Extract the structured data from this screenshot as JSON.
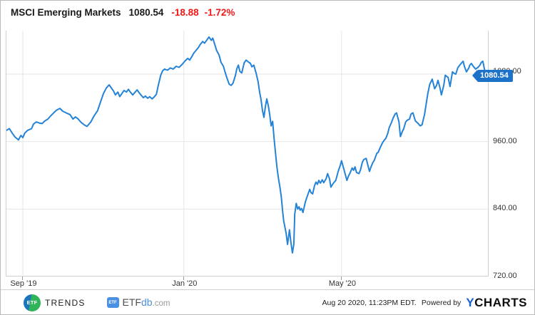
{
  "title": {
    "name": "MSCI Emerging Markets",
    "value": "1080.54",
    "change": "-18.88",
    "change_pct": "-1.72%",
    "change_color": "#f01818"
  },
  "chart_data": {
    "type": "line",
    "series_name": "MSCI Emerging Markets",
    "line_color": "#2583d7",
    "grid_color": "#e6e6e6",
    "x_ticks": [
      {
        "label": "Sep '19",
        "f": 0.034
      },
      {
        "label": "Jan '20",
        "f": 0.368
      },
      {
        "label": "May '20",
        "f": 0.695
      }
    ],
    "y_ticks": [
      {
        "label": "1080.00",
        "v": 1080
      },
      {
        "label": "960.00",
        "v": 960
      },
      {
        "label": "840.00",
        "v": 840
      },
      {
        "label": "720.00",
        "v": 720
      }
    ],
    "ylim": [
      720,
      1159
    ],
    "last_value": 1080.54,
    "last_value_label": "1080.54",
    "points": [
      [
        0.0,
        980
      ],
      [
        0.006,
        983
      ],
      [
        0.012,
        975
      ],
      [
        0.018,
        968
      ],
      [
        0.025,
        963
      ],
      [
        0.03,
        971
      ],
      [
        0.034,
        967
      ],
      [
        0.038,
        975
      ],
      [
        0.044,
        980
      ],
      [
        0.052,
        983
      ],
      [
        0.056,
        991
      ],
      [
        0.062,
        995
      ],
      [
        0.068,
        993
      ],
      [
        0.074,
        992
      ],
      [
        0.08,
        997
      ],
      [
        0.086,
        1000
      ],
      [
        0.092,
        1006
      ],
      [
        0.098,
        1011
      ],
      [
        0.104,
        1016
      ],
      [
        0.111,
        1019
      ],
      [
        0.117,
        1014
      ],
      [
        0.124,
        1011
      ],
      [
        0.132,
        1008
      ],
      [
        0.138,
        1000
      ],
      [
        0.143,
        1004
      ],
      [
        0.149,
        1000
      ],
      [
        0.155,
        994
      ],
      [
        0.161,
        990
      ],
      [
        0.167,
        987
      ],
      [
        0.175,
        995
      ],
      [
        0.182,
        1006
      ],
      [
        0.189,
        1015
      ],
      [
        0.195,
        1030
      ],
      [
        0.201,
        1045
      ],
      [
        0.207,
        1055
      ],
      [
        0.213,
        1061
      ],
      [
        0.217,
        1056
      ],
      [
        0.222,
        1050
      ],
      [
        0.226,
        1043
      ],
      [
        0.231,
        1048
      ],
      [
        0.235,
        1040
      ],
      [
        0.24,
        1046
      ],
      [
        0.244,
        1051
      ],
      [
        0.249,
        1048
      ],
      [
        0.253,
        1053
      ],
      [
        0.257,
        1048
      ],
      [
        0.262,
        1043
      ],
      [
        0.266,
        1047
      ],
      [
        0.271,
        1052
      ],
      [
        0.275,
        1047
      ],
      [
        0.28,
        1042
      ],
      [
        0.284,
        1038
      ],
      [
        0.288,
        1041
      ],
      [
        0.293,
        1037
      ],
      [
        0.297,
        1040
      ],
      [
        0.302,
        1036
      ],
      [
        0.306,
        1039
      ],
      [
        0.311,
        1044
      ],
      [
        0.315,
        1060
      ],
      [
        0.32,
        1078
      ],
      [
        0.324,
        1086
      ],
      [
        0.328,
        1089
      ],
      [
        0.334,
        1087
      ],
      [
        0.34,
        1091
      ],
      [
        0.346,
        1089
      ],
      [
        0.352,
        1094
      ],
      [
        0.358,
        1092
      ],
      [
        0.364,
        1097
      ],
      [
        0.37,
        1103
      ],
      [
        0.376,
        1108
      ],
      [
        0.38,
        1105
      ],
      [
        0.385,
        1112
      ],
      [
        0.389,
        1118
      ],
      [
        0.393,
        1122
      ],
      [
        0.398,
        1127
      ],
      [
        0.402,
        1133
      ],
      [
        0.407,
        1138
      ],
      [
        0.411,
        1135
      ],
      [
        0.416,
        1141
      ],
      [
        0.42,
        1146
      ],
      [
        0.425,
        1140
      ],
      [
        0.428,
        1144
      ],
      [
        0.432,
        1133
      ],
      [
        0.436,
        1122
      ],
      [
        0.441,
        1114
      ],
      [
        0.445,
        1101
      ],
      [
        0.45,
        1094
      ],
      [
        0.453,
        1085
      ],
      [
        0.457,
        1074
      ],
      [
        0.462,
        1062
      ],
      [
        0.466,
        1060
      ],
      [
        0.47,
        1064
      ],
      [
        0.475,
        1078
      ],
      [
        0.478,
        1090
      ],
      [
        0.481,
        1096
      ],
      [
        0.484,
        1085
      ],
      [
        0.488,
        1082
      ],
      [
        0.493,
        1100
      ],
      [
        0.497,
        1105
      ],
      [
        0.501,
        1102
      ],
      [
        0.506,
        1099
      ],
      [
        0.509,
        1093
      ],
      [
        0.513,
        1096
      ],
      [
        0.518,
        1081
      ],
      [
        0.522,
        1066
      ],
      [
        0.525,
        1048
      ],
      [
        0.528,
        1035
      ],
      [
        0.531,
        1015
      ],
      [
        0.534,
        1003
      ],
      [
        0.537,
        1022
      ],
      [
        0.54,
        1036
      ],
      [
        0.543,
        1024
      ],
      [
        0.546,
        1008
      ],
      [
        0.549,
        988
      ],
      [
        0.552,
        996
      ],
      [
        0.555,
        966
      ],
      [
        0.558,
        940
      ],
      [
        0.561,
        915
      ],
      [
        0.564,
        895
      ],
      [
        0.567,
        880
      ],
      [
        0.57,
        862
      ],
      [
        0.573,
        835
      ],
      [
        0.575,
        819
      ],
      [
        0.58,
        797
      ],
      [
        0.583,
        777
      ],
      [
        0.587,
        803
      ],
      [
        0.59,
        781
      ],
      [
        0.593,
        762
      ],
      [
        0.596,
        777
      ],
      [
        0.598,
        831
      ],
      [
        0.601,
        850
      ],
      [
        0.604,
        840
      ],
      [
        0.607,
        844
      ],
      [
        0.609,
        838
      ],
      [
        0.612,
        841
      ],
      [
        0.615,
        834
      ],
      [
        0.62,
        853
      ],
      [
        0.624,
        863
      ],
      [
        0.629,
        875
      ],
      [
        0.632,
        869
      ],
      [
        0.635,
        867
      ],
      [
        0.639,
        882
      ],
      [
        0.642,
        888
      ],
      [
        0.645,
        884
      ],
      [
        0.648,
        891
      ],
      [
        0.651,
        886
      ],
      [
        0.655,
        892
      ],
      [
        0.658,
        887
      ],
      [
        0.663,
        894
      ],
      [
        0.666,
        903
      ],
      [
        0.67,
        894
      ],
      [
        0.673,
        879
      ],
      [
        0.678,
        886
      ],
      [
        0.68,
        888
      ],
      [
        0.683,
        891
      ],
      [
        0.688,
        907
      ],
      [
        0.692,
        917
      ],
      [
        0.695,
        926
      ],
      [
        0.701,
        907
      ],
      [
        0.706,
        891
      ],
      [
        0.709,
        898
      ],
      [
        0.713,
        905
      ],
      [
        0.717,
        913
      ],
      [
        0.72,
        909
      ],
      [
        0.723,
        915
      ],
      [
        0.726,
        905
      ],
      [
        0.731,
        903
      ],
      [
        0.734,
        909
      ],
      [
        0.738,
        923
      ],
      [
        0.741,
        928
      ],
      [
        0.746,
        930
      ],
      [
        0.749,
        920
      ],
      [
        0.753,
        907
      ],
      [
        0.756,
        915
      ],
      [
        0.76,
        923
      ],
      [
        0.763,
        927
      ],
      [
        0.768,
        939
      ],
      [
        0.771,
        941
      ],
      [
        0.775,
        949
      ],
      [
        0.78,
        958
      ],
      [
        0.784,
        963
      ],
      [
        0.787,
        966
      ],
      [
        0.791,
        975
      ],
      [
        0.794,
        985
      ],
      [
        0.799,
        995
      ],
      [
        0.802,
        1002
      ],
      [
        0.806,
        1009
      ],
      [
        0.809,
        1011
      ],
      [
        0.814,
        995
      ],
      [
        0.817,
        969
      ],
      [
        0.821,
        978
      ],
      [
        0.824,
        983
      ],
      [
        0.828,
        995
      ],
      [
        0.831,
        998
      ],
      [
        0.836,
        1000
      ],
      [
        0.839,
        1009
      ],
      [
        0.843,
        1011
      ],
      [
        0.848,
        997
      ],
      [
        0.854,
        992
      ],
      [
        0.858,
        988
      ],
      [
        0.862,
        990
      ],
      [
        0.867,
        1008
      ],
      [
        0.87,
        1024
      ],
      [
        0.874,
        1046
      ],
      [
        0.878,
        1062
      ],
      [
        0.883,
        1071
      ],
      [
        0.888,
        1054
      ],
      [
        0.892,
        1060
      ],
      [
        0.895,
        1069
      ],
      [
        0.899,
        1056
      ],
      [
        0.902,
        1043
      ],
      [
        0.907,
        1060
      ],
      [
        0.91,
        1078
      ],
      [
        0.916,
        1074
      ],
      [
        0.92,
        1058
      ],
      [
        0.925,
        1084
      ],
      [
        0.929,
        1081
      ],
      [
        0.932,
        1080
      ],
      [
        0.936,
        1091
      ],
      [
        0.941,
        1097
      ],
      [
        0.947,
        1103
      ],
      [
        0.95,
        1093
      ],
      [
        0.954,
        1084
      ],
      [
        0.959,
        1091
      ],
      [
        0.961,
        1096
      ],
      [
        0.964,
        1099
      ],
      [
        0.969,
        1093
      ],
      [
        0.973,
        1089
      ],
      [
        0.978,
        1092
      ],
      [
        0.982,
        1096
      ],
      [
        0.985,
        1101
      ],
      [
        0.988,
        1103
      ],
      [
        0.991,
        1090
      ],
      [
        0.994,
        1080.54
      ]
    ]
  },
  "footer": {
    "etf_trends": {
      "circle_text": "ETF",
      "label": "TRENDS"
    },
    "etfdb": {
      "icon_text": "ETF",
      "part1": "ETF",
      "part2": "db",
      "part3": ".com"
    },
    "timestamp": "Aug 20 2020, 11:23PM EDT.",
    "powered_by": "Powered by",
    "ycharts": {
      "y": "Y",
      "charts": "CHARTS"
    }
  }
}
